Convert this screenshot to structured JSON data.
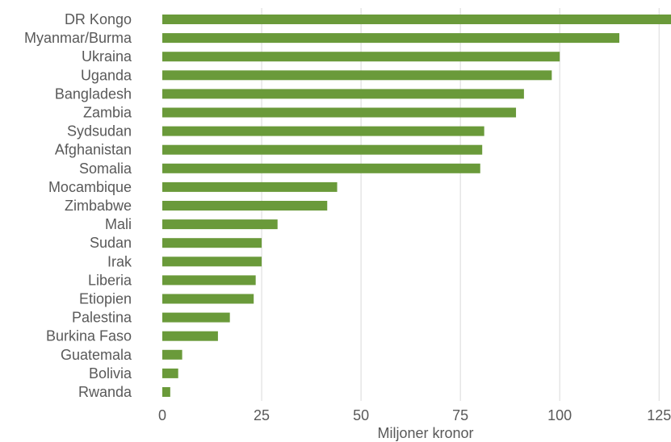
{
  "chart_data": {
    "type": "bar",
    "orientation": "horizontal",
    "categories": [
      "DR Kongo",
      "Myanmar/Burma",
      "Ukraina",
      "Uganda",
      "Bangladesh",
      "Zambia",
      "Sydsudan",
      "Afghanistan",
      "Somalia",
      "Mocambique",
      "Zimbabwe",
      "Mali",
      "Sudan",
      "Irak",
      "Liberia",
      "Etiopien",
      "Palestina",
      "Burkina Faso",
      "Guatemala",
      "Bolivia",
      "Rwanda"
    ],
    "values": [
      129,
      115,
      100,
      98,
      91,
      89,
      81,
      80.5,
      80,
      44,
      41.5,
      29,
      25,
      25,
      23.5,
      23,
      17,
      14,
      5,
      4,
      2
    ],
    "xlabel": "Miljoner kronor",
    "ylabel": "",
    "xlim": [
      0,
      128
    ],
    "xticks": [
      0,
      25,
      50,
      75,
      100,
      125
    ],
    "grid": true,
    "bar_color": "#6a9a3a"
  }
}
